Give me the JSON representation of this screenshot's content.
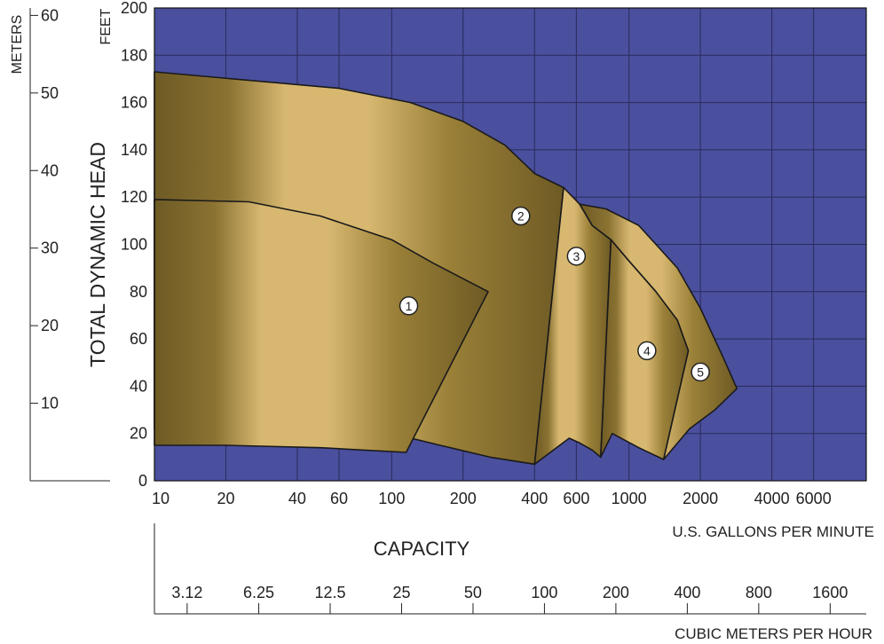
{
  "chart_data": {
    "type": "area",
    "title": "",
    "ylabel": "TOTAL DYNAMIC HEAD",
    "ylabel_units": "FEET",
    "y2label_units": "METERS",
    "xlabel": "CAPACITY",
    "x_units_top": "U.S. GALLONS PER MINUTE",
    "x_units_bottom": "CUBIC METERS PER HOUR",
    "x_scale": "log",
    "xlim": [
      10,
      10000
    ],
    "ylim": [
      0,
      200
    ],
    "grid": true,
    "x_ticks": [
      10,
      20,
      40,
      60,
      100,
      200,
      400,
      600,
      1000,
      2000,
      4000,
      6000
    ],
    "x_tick_labels": [
      "10",
      "20",
      "40",
      "60",
      "100",
      "200",
      "400",
      "600",
      "1000",
      "2000",
      "4000",
      "6000"
    ],
    "y_ticks": [
      0,
      20,
      40,
      60,
      80,
      100,
      120,
      140,
      160,
      180,
      200
    ],
    "y_tick_labels": [
      "0",
      "20",
      "40",
      "60",
      "80",
      "100",
      "120",
      "140",
      "160",
      "180",
      "200"
    ],
    "meters_ticks": [
      10,
      20,
      30,
      40,
      50,
      60
    ],
    "meters_tick_labels": [
      "10",
      "20",
      "30",
      "40",
      "50",
      "60"
    ],
    "cmh_ticks": [
      3.12,
      6.25,
      12.5,
      25,
      50,
      100,
      200,
      400,
      800,
      1600
    ],
    "cmh_tick_labels": [
      "3.12",
      "6.25",
      "12.5",
      "25",
      "50",
      "100",
      "200",
      "400",
      "800",
      "1600"
    ],
    "colors": {
      "plot_background": "#4a4f9e",
      "grid": "#2a2c5a",
      "region_dark": "#6e5a24",
      "region_light": "#d8b870",
      "outline": "#1a1a1a"
    },
    "regions": [
      {
        "label": "2",
        "label_pos": [
          350,
          112
        ],
        "outline": [
          [
            10,
            173
          ],
          [
            60,
            166
          ],
          [
            120,
            160
          ],
          [
            200,
            152
          ],
          [
            300,
            142
          ],
          [
            400,
            130
          ],
          [
            530,
            124
          ],
          [
            400,
            7
          ],
          [
            260,
            10
          ],
          [
            160,
            15
          ],
          [
            100,
            20
          ],
          [
            50,
            22
          ],
          [
            25,
            22
          ],
          [
            10,
            22
          ]
        ]
      },
      {
        "label": "1",
        "label_pos": [
          118,
          74
        ],
        "outline": [
          [
            10,
            119
          ],
          [
            25,
            118
          ],
          [
            50,
            112
          ],
          [
            100,
            102
          ],
          [
            150,
            92
          ],
          [
            255,
            80
          ],
          [
            115,
            12
          ],
          [
            50,
            14
          ],
          [
            20,
            15
          ],
          [
            10,
            15
          ]
        ]
      },
      {
        "label": "3",
        "label_pos": [
          600,
          95
        ],
        "outline": [
          [
            530,
            124
          ],
          [
            620,
            117
          ],
          [
            700,
            108
          ],
          [
            840,
            102
          ],
          [
            760,
            10
          ],
          [
            700,
            13
          ],
          [
            620,
            16
          ],
          [
            560,
            18
          ],
          [
            400,
            7
          ]
        ]
      },
      {
        "label": "4",
        "label_pos": [
          1190,
          55
        ],
        "outline": [
          [
            840,
            102
          ],
          [
            1000,
            93
          ],
          [
            1300,
            80
          ],
          [
            1600,
            68
          ],
          [
            1780,
            55
          ],
          [
            1400,
            9
          ],
          [
            1100,
            14
          ],
          [
            850,
            20
          ],
          [
            760,
            10
          ]
        ]
      },
      {
        "label": "5",
        "label_pos": [
          2000,
          46
        ],
        "outline": [
          [
            620,
            117
          ],
          [
            800,
            115
          ],
          [
            1100,
            108
          ],
          [
            1600,
            90
          ],
          [
            2000,
            73
          ],
          [
            2500,
            52
          ],
          [
            2850,
            39
          ],
          [
            2300,
            30
          ],
          [
            1800,
            22
          ],
          [
            1400,
            9
          ],
          [
            1780,
            55
          ],
          [
            1600,
            68
          ],
          [
            1300,
            80
          ],
          [
            1000,
            93
          ],
          [
            840,
            102
          ],
          [
            700,
            108
          ]
        ]
      }
    ]
  }
}
